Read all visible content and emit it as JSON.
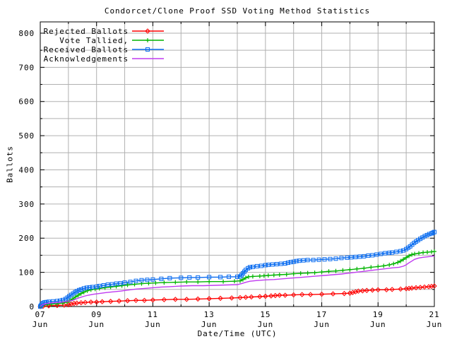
{
  "chart_data": {
    "type": "line",
    "title": "Condorcet/Clone Proof SSD Voting Method Statistics",
    "xlabel": "Date/Time (UTC)",
    "ylabel": "Ballots",
    "xlim": [
      7,
      21
    ],
    "ylim": [
      0,
      833
    ],
    "x_major_ticks": [
      {
        "day": 7,
        "line1": "07",
        "line2": "Jun"
      },
      {
        "day": 9,
        "line1": "09",
        "line2": "Jun"
      },
      {
        "day": 11,
        "line1": "11",
        "line2": "Jun"
      },
      {
        "day": 13,
        "line1": "13",
        "line2": "Jun"
      },
      {
        "day": 15,
        "line1": "15",
        "line2": "Jun"
      },
      {
        "day": 17,
        "line1": "17",
        "line2": "Jun"
      },
      {
        "day": 19,
        "line1": "19",
        "line2": "Jun"
      },
      {
        "day": 21,
        "line1": "21",
        "line2": "Jun"
      }
    ],
    "x_minor_step_days": 1,
    "y_major_ticks": [
      0,
      100,
      200,
      300,
      400,
      500,
      600,
      700,
      800
    ],
    "y_minor_step": 50,
    "grid": {
      "shown": true,
      "color": "#b0b0b0"
    },
    "axis_color": "#000000",
    "background_color": "#ffffff",
    "legend_position": "top-left-inside",
    "series": [
      {
        "name": "Rejected Ballots",
        "color": "#ff0000",
        "marker": "diamond",
        "points": [
          [
            7.0,
            0
          ],
          [
            7.1,
            1
          ],
          [
            7.3,
            2
          ],
          [
            7.6,
            3
          ],
          [
            7.85,
            4
          ],
          [
            8.0,
            5
          ],
          [
            8.1,
            7
          ],
          [
            8.2,
            9
          ],
          [
            8.3,
            10
          ],
          [
            8.45,
            11
          ],
          [
            8.6,
            12
          ],
          [
            8.8,
            13
          ],
          [
            9.0,
            13
          ],
          [
            9.2,
            14
          ],
          [
            9.5,
            15
          ],
          [
            9.8,
            16
          ],
          [
            10.1,
            17
          ],
          [
            10.4,
            18
          ],
          [
            10.7,
            18
          ],
          [
            11.0,
            19
          ],
          [
            11.4,
            20
          ],
          [
            11.8,
            21
          ],
          [
            12.2,
            21
          ],
          [
            12.6,
            22
          ],
          [
            13.0,
            23
          ],
          [
            13.4,
            24
          ],
          [
            13.8,
            25
          ],
          [
            14.1,
            26
          ],
          [
            14.3,
            27
          ],
          [
            14.5,
            28
          ],
          [
            14.8,
            29
          ],
          [
            15.0,
            30
          ],
          [
            15.2,
            31
          ],
          [
            15.35,
            32
          ],
          [
            15.5,
            33
          ],
          [
            15.7,
            33
          ],
          [
            16.0,
            34
          ],
          [
            16.3,
            35
          ],
          [
            16.6,
            35
          ],
          [
            17.0,
            36
          ],
          [
            17.4,
            37
          ],
          [
            17.8,
            38
          ],
          [
            18.0,
            39
          ],
          [
            18.1,
            41
          ],
          [
            18.2,
            43
          ],
          [
            18.3,
            45
          ],
          [
            18.45,
            46
          ],
          [
            18.6,
            47
          ],
          [
            18.8,
            48
          ],
          [
            19.0,
            49
          ],
          [
            19.3,
            49
          ],
          [
            19.5,
            50
          ],
          [
            19.8,
            51
          ],
          [
            20.0,
            52
          ],
          [
            20.1,
            53
          ],
          [
            20.2,
            54
          ],
          [
            20.35,
            55
          ],
          [
            20.5,
            56
          ],
          [
            20.65,
            57
          ],
          [
            20.8,
            58
          ],
          [
            20.9,
            59
          ],
          [
            21.0,
            60
          ]
        ]
      },
      {
        "name": "Vote Tallied,",
        "color": "#00b400",
        "marker": "plus",
        "points": [
          [
            7.0,
            0
          ],
          [
            7.05,
            3
          ],
          [
            7.12,
            5
          ],
          [
            7.25,
            6
          ],
          [
            7.4,
            7
          ],
          [
            7.6,
            8
          ],
          [
            7.8,
            10
          ],
          [
            7.95,
            13
          ],
          [
            8.05,
            17
          ],
          [
            8.15,
            22
          ],
          [
            8.25,
            28
          ],
          [
            8.35,
            33
          ],
          [
            8.45,
            38
          ],
          [
            8.55,
            42
          ],
          [
            8.67,
            46
          ],
          [
            8.8,
            49
          ],
          [
            8.95,
            51
          ],
          [
            9.1,
            53
          ],
          [
            9.3,
            55
          ],
          [
            9.5,
            57
          ],
          [
            9.7,
            59
          ],
          [
            9.9,
            61
          ],
          [
            10.1,
            63
          ],
          [
            10.35,
            65
          ],
          [
            10.6,
            67
          ],
          [
            10.85,
            68
          ],
          [
            11.1,
            69
          ],
          [
            11.4,
            70
          ],
          [
            11.8,
            71
          ],
          [
            12.2,
            72
          ],
          [
            12.6,
            72
          ],
          [
            13.0,
            73
          ],
          [
            13.5,
            73
          ],
          [
            13.9,
            74
          ],
          [
            14.1,
            75
          ],
          [
            14.2,
            79
          ],
          [
            14.3,
            84
          ],
          [
            14.4,
            87
          ],
          [
            14.55,
            88
          ],
          [
            14.8,
            89
          ],
          [
            14.95,
            90
          ],
          [
            15.1,
            91
          ],
          [
            15.3,
            92
          ],
          [
            15.5,
            93
          ],
          [
            15.75,
            94
          ],
          [
            16.0,
            96
          ],
          [
            16.25,
            97
          ],
          [
            16.5,
            98
          ],
          [
            16.75,
            99
          ],
          [
            17.0,
            101
          ],
          [
            17.25,
            103
          ],
          [
            17.5,
            104
          ],
          [
            17.75,
            106
          ],
          [
            18.0,
            108
          ],
          [
            18.25,
            110
          ],
          [
            18.5,
            112
          ],
          [
            18.75,
            115
          ],
          [
            19.0,
            117
          ],
          [
            19.2,
            119
          ],
          [
            19.4,
            122
          ],
          [
            19.55,
            125
          ],
          [
            19.7,
            129
          ],
          [
            19.8,
            133
          ],
          [
            19.9,
            138
          ],
          [
            20.0,
            143
          ],
          [
            20.1,
            148
          ],
          [
            20.2,
            152
          ],
          [
            20.3,
            154
          ],
          [
            20.45,
            156
          ],
          [
            20.6,
            158
          ],
          [
            20.75,
            159
          ],
          [
            20.9,
            160
          ],
          [
            21.0,
            161
          ]
        ]
      },
      {
        "name": "Received Ballots",
        "color": "#0a6cf0",
        "marker": "square",
        "points": [
          [
            7.0,
            0
          ],
          [
            7.02,
            3
          ],
          [
            7.05,
            7
          ],
          [
            7.1,
            10
          ],
          [
            7.15,
            12
          ],
          [
            7.22,
            13
          ],
          [
            7.3,
            14
          ],
          [
            7.45,
            15
          ],
          [
            7.6,
            16
          ],
          [
            7.7,
            17
          ],
          [
            7.8,
            19
          ],
          [
            7.9,
            22
          ],
          [
            7.97,
            26
          ],
          [
            8.03,
            30
          ],
          [
            8.1,
            34
          ],
          [
            8.17,
            38
          ],
          [
            8.24,
            42
          ],
          [
            8.3,
            45
          ],
          [
            8.38,
            48
          ],
          [
            8.45,
            50
          ],
          [
            8.55,
            53
          ],
          [
            8.65,
            55
          ],
          [
            8.75,
            56
          ],
          [
            8.85,
            57
          ],
          [
            9.0,
            58
          ],
          [
            9.1,
            60
          ],
          [
            9.25,
            62
          ],
          [
            9.4,
            64
          ],
          [
            9.55,
            65
          ],
          [
            9.7,
            67
          ],
          [
            9.85,
            68
          ],
          [
            10.0,
            70
          ],
          [
            10.2,
            72
          ],
          [
            10.4,
            75
          ],
          [
            10.6,
            77
          ],
          [
            10.8,
            78
          ],
          [
            11.0,
            79
          ],
          [
            11.3,
            81
          ],
          [
            11.6,
            83
          ],
          [
            12.0,
            84
          ],
          [
            12.3,
            85
          ],
          [
            12.6,
            85
          ],
          [
            13.0,
            86
          ],
          [
            13.4,
            86
          ],
          [
            13.7,
            87
          ],
          [
            14.0,
            87
          ],
          [
            14.1,
            88
          ],
          [
            14.15,
            92
          ],
          [
            14.2,
            97
          ],
          [
            14.25,
            102
          ],
          [
            14.3,
            107
          ],
          [
            14.38,
            112
          ],
          [
            14.45,
            115
          ],
          [
            14.55,
            116
          ],
          [
            14.7,
            118
          ],
          [
            14.85,
            119
          ],
          [
            15.0,
            121
          ],
          [
            15.1,
            122
          ],
          [
            15.25,
            123
          ],
          [
            15.4,
            124
          ],
          [
            15.55,
            125
          ],
          [
            15.7,
            126
          ],
          [
            15.8,
            128
          ],
          [
            15.9,
            130
          ],
          [
            16.0,
            131
          ],
          [
            16.1,
            133
          ],
          [
            16.2,
            134
          ],
          [
            16.35,
            135
          ],
          [
            16.5,
            136
          ],
          [
            16.7,
            136
          ],
          [
            16.9,
            137
          ],
          [
            17.1,
            138
          ],
          [
            17.3,
            139
          ],
          [
            17.5,
            140
          ],
          [
            17.7,
            142
          ],
          [
            17.9,
            143
          ],
          [
            18.05,
            144
          ],
          [
            18.2,
            145
          ],
          [
            18.35,
            146
          ],
          [
            18.5,
            147
          ],
          [
            18.65,
            149
          ],
          [
            18.8,
            150
          ],
          [
            18.95,
            152
          ],
          [
            19.1,
            154
          ],
          [
            19.25,
            156
          ],
          [
            19.4,
            157
          ],
          [
            19.5,
            158
          ],
          [
            19.65,
            160
          ],
          [
            19.8,
            162
          ],
          [
            19.9,
            164
          ],
          [
            20.0,
            168
          ],
          [
            20.07,
            172
          ],
          [
            20.14,
            176
          ],
          [
            20.21,
            181
          ],
          [
            20.28,
            186
          ],
          [
            20.35,
            190
          ],
          [
            20.42,
            194
          ],
          [
            20.5,
            198
          ],
          [
            20.58,
            202
          ],
          [
            20.66,
            206
          ],
          [
            20.74,
            209
          ],
          [
            20.82,
            212
          ],
          [
            20.9,
            214
          ],
          [
            20.95,
            216
          ],
          [
            21.0,
            218
          ]
        ]
      },
      {
        "name": "Acknowledgements",
        "color": "#bf3af0",
        "marker": "none",
        "points": [
          [
            7.0,
            0
          ],
          [
            7.05,
            4
          ],
          [
            7.12,
            7
          ],
          [
            7.25,
            9
          ],
          [
            7.4,
            11
          ],
          [
            7.6,
            12
          ],
          [
            7.8,
            13
          ],
          [
            7.95,
            15
          ],
          [
            8.1,
            17
          ],
          [
            8.25,
            21
          ],
          [
            8.4,
            26
          ],
          [
            8.55,
            30
          ],
          [
            8.7,
            33
          ],
          [
            8.9,
            36
          ],
          [
            9.1,
            38
          ],
          [
            9.35,
            41
          ],
          [
            9.6,
            43
          ],
          [
            9.85,
            45
          ],
          [
            10.1,
            48
          ],
          [
            10.4,
            51
          ],
          [
            10.7,
            53
          ],
          [
            11.0,
            55
          ],
          [
            11.3,
            57
          ],
          [
            11.6,
            58
          ],
          [
            12.0,
            60
          ],
          [
            12.4,
            61
          ],
          [
            12.8,
            61
          ],
          [
            13.2,
            62
          ],
          [
            13.6,
            63
          ],
          [
            14.0,
            64
          ],
          [
            14.15,
            67
          ],
          [
            14.3,
            71
          ],
          [
            14.45,
            74
          ],
          [
            14.7,
            76
          ],
          [
            15.0,
            78
          ],
          [
            15.3,
            79
          ],
          [
            15.6,
            81
          ],
          [
            15.9,
            83
          ],
          [
            16.2,
            85
          ],
          [
            16.5,
            87
          ],
          [
            16.8,
            89
          ],
          [
            17.1,
            91
          ],
          [
            17.4,
            93
          ],
          [
            17.7,
            95
          ],
          [
            18.0,
            98
          ],
          [
            18.3,
            101
          ],
          [
            18.6,
            104
          ],
          [
            18.9,
            107
          ],
          [
            19.2,
            110
          ],
          [
            19.5,
            113
          ],
          [
            19.75,
            115
          ],
          [
            19.9,
            118
          ],
          [
            20.0,
            122
          ],
          [
            20.1,
            128
          ],
          [
            20.2,
            133
          ],
          [
            20.3,
            138
          ],
          [
            20.45,
            142
          ],
          [
            20.6,
            144
          ],
          [
            20.8,
            146
          ],
          [
            21.0,
            148
          ]
        ]
      }
    ]
  }
}
